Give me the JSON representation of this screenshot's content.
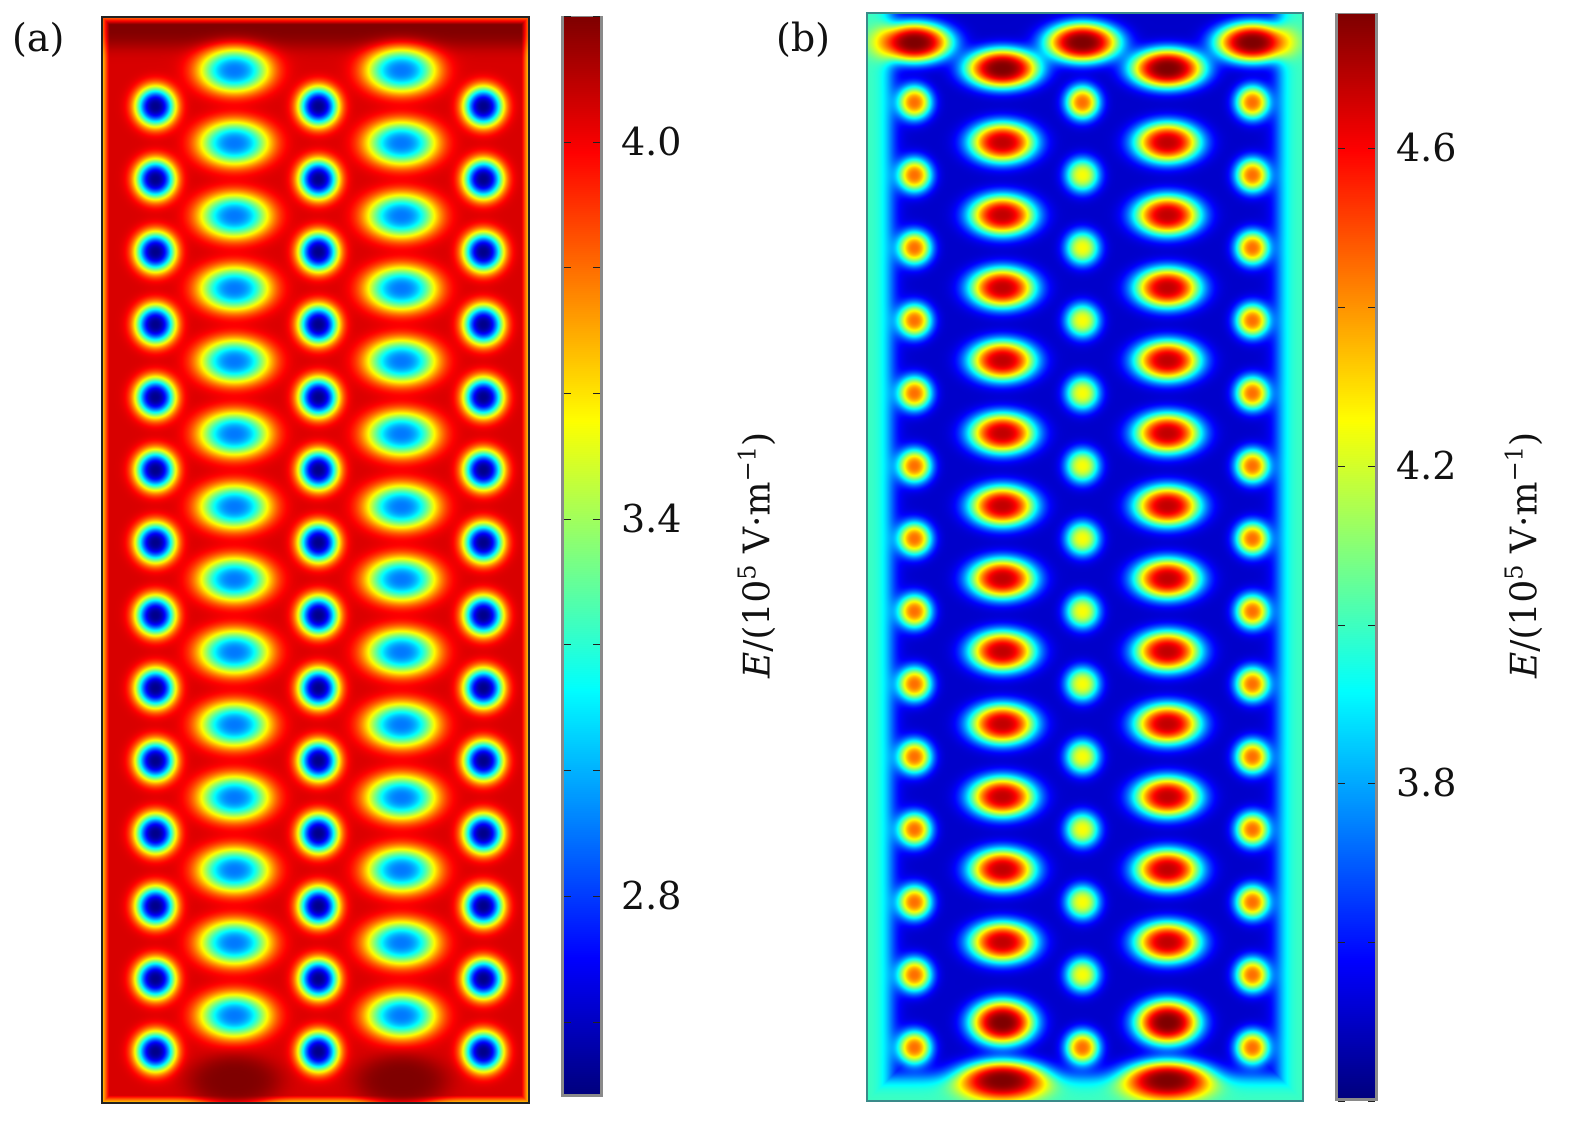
{
  "chart_data": [
    {
      "type": "heatmap",
      "panel_label": "(a)",
      "colormap": "jet",
      "colorbar": {
        "min": 2.48,
        "max": 4.2,
        "ticks": [
          2.8,
          3.4,
          4.0
        ],
        "tick_labels": [
          "2.8",
          "3.4",
          "4.0"
        ],
        "minor_step": 0.2,
        "label": {
          "symbol": "E",
          "prefix": "/(10",
          "power": "5",
          "unit": " V·m",
          "unit_power": "−1",
          "suffix": ")"
        }
      },
      "field": {
        "background": 4.05,
        "top_band": 4.2,
        "features": [
          {
            "kind": "minimum",
            "shape": "circle",
            "value": 2.5,
            "columns": [
              1,
              3,
              5
            ],
            "rows": 14
          },
          {
            "kind": "minimum",
            "shape": "ellipse",
            "value": 2.9,
            "columns": [
              2,
              4
            ],
            "rows": 14
          },
          {
            "kind": "maximum",
            "shape": "bottom-band",
            "value": 4.2,
            "columns": [
              2,
              4
            ]
          }
        ]
      }
    },
    {
      "type": "heatmap",
      "panel_label": "(b)",
      "colormap": "jet",
      "colorbar": {
        "min": 3.4,
        "max": 4.77,
        "ticks": [
          3.8,
          4.2,
          4.6
        ],
        "tick_labels": [
          "3.8",
          "4.2",
          "4.6"
        ],
        "minor_step": 0.2,
        "label": {
          "symbol": "E",
          "prefix": "/(10",
          "power": "5",
          "unit": " V·m",
          "unit_power": "−1",
          "suffix": ")"
        }
      },
      "field": {
        "background": 3.5,
        "edge": 4.0,
        "features": [
          {
            "kind": "maximum",
            "shape": "ellipse",
            "value": 4.68,
            "columns": [
              2,
              4
            ],
            "rows": 12
          },
          {
            "kind": "maximum",
            "shape": "circle",
            "value": 4.45,
            "columns": [
              1,
              5
            ],
            "rows": 14
          },
          {
            "kind": "maximum",
            "shape": "circle",
            "value": 4.25,
            "columns": [
              3
            ],
            "rows": 14
          },
          {
            "kind": "maximum",
            "shape": "top-band",
            "value": 4.77,
            "columns": [
              1,
              2,
              3,
              4,
              5
            ]
          },
          {
            "kind": "maximum",
            "shape": "bottom-band",
            "value": 4.77,
            "columns": [
              2,
              4
            ]
          }
        ]
      }
    }
  ]
}
